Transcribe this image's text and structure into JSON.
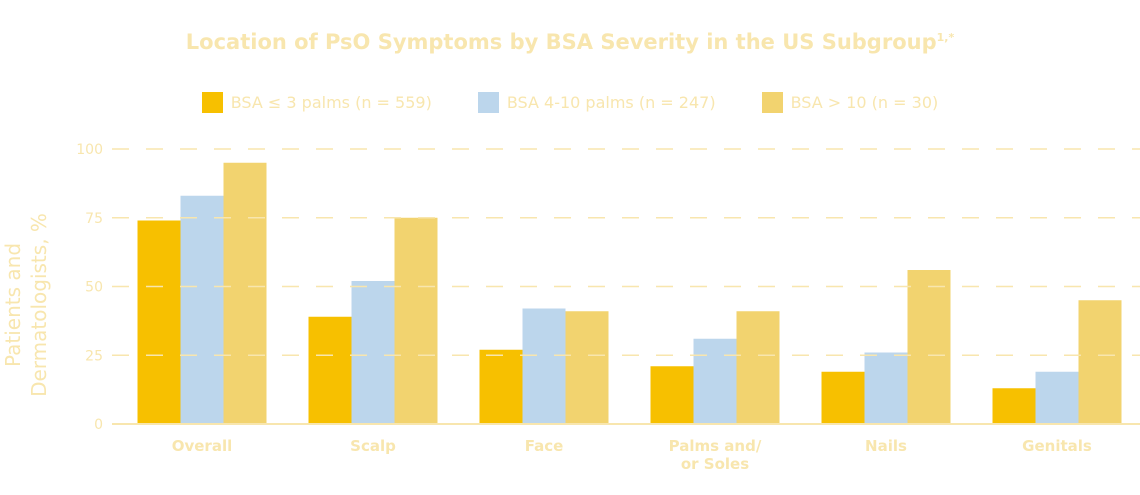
{
  "chart_data": {
    "type": "bar",
    "title": "Location of PsO Symptoms by BSA Severity in the US Subgroup",
    "title_superscript": "1,*",
    "ylabel_lines": [
      "Patients and",
      "Dermatologists, %"
    ],
    "ylim": [
      0,
      100
    ],
    "yticks": [
      "0",
      "25",
      "50",
      "75",
      "100"
    ],
    "grid": "dashed horizontal",
    "legend_position": "top",
    "categories": [
      [
        "Overall"
      ],
      [
        "Scalp"
      ],
      [
        "Face"
      ],
      [
        "Palms and/",
        "or Soles"
      ],
      [
        "Nails"
      ],
      [
        "Genitals"
      ]
    ],
    "series": [
      {
        "name": "BSA ≤ 3 palms (n = 559)",
        "color": "#F7C000",
        "values": [
          74,
          39,
          27,
          21,
          19,
          13
        ]
      },
      {
        "name": "BSA 4-10 palms (n = 247)",
        "color": "#BCD6EC",
        "values": [
          83,
          52,
          42,
          31,
          26,
          19
        ]
      },
      {
        "name": "BSA > 10 (n = 30)",
        "color": "#F2D36F",
        "values": [
          95,
          75,
          41,
          41,
          56,
          45
        ]
      }
    ],
    "text_color": "#F8E6AE"
  }
}
